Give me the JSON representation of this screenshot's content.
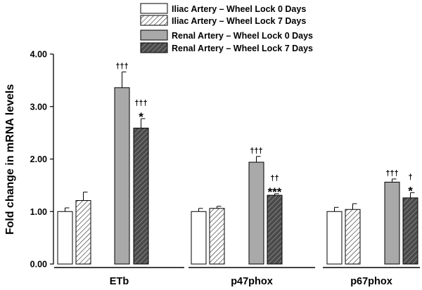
{
  "chart_data": {
    "type": "bar",
    "ylabel": "Fold change in mRNA levels",
    "ylim": [
      0,
      4
    ],
    "yticks": [
      "0.00",
      "1.00",
      "2.00",
      "3.00",
      "4.00"
    ],
    "grid": false,
    "legend_position": "top",
    "categories": [
      "ETb",
      "p47phox",
      "p67phox"
    ],
    "series": [
      {
        "name": "Iliac Artery – Wheel Lock 0 Days",
        "fill": "#ffffff",
        "pattern": "none",
        "values": [
          1.0,
          1.0,
          1.0
        ],
        "errors": [
          0.07,
          0.06,
          0.08
        ],
        "annotations": [
          "",
          "",
          ""
        ]
      },
      {
        "name": "Iliac Artery – Wheel Lock 7 Days",
        "fill": "#ffffff",
        "pattern": "light-diagonal",
        "values": [
          1.21,
          1.06,
          1.04
        ],
        "errors": [
          0.16,
          0.04,
          0.11
        ],
        "annotations": [
          "",
          "",
          ""
        ]
      },
      {
        "name": "Renal Artery – Wheel Lock 0 Days",
        "fill": "#a9a9a9",
        "pattern": "none",
        "values": [
          3.36,
          1.94,
          1.56
        ],
        "errors": [
          0.3,
          0.11,
          0.06
        ],
        "annotations": [
          "†††",
          "†††",
          "†††"
        ]
      },
      {
        "name": "Renal Artery – Wheel Lock 7 Days",
        "fill": "#555555",
        "pattern": "dark-diagonal",
        "values": [
          2.59,
          1.31,
          1.26
        ],
        "errors": [
          0.18,
          0.03,
          0.1
        ],
        "annotations": [
          "†††\n*",
          "††\n***",
          "†\n*"
        ]
      }
    ]
  }
}
